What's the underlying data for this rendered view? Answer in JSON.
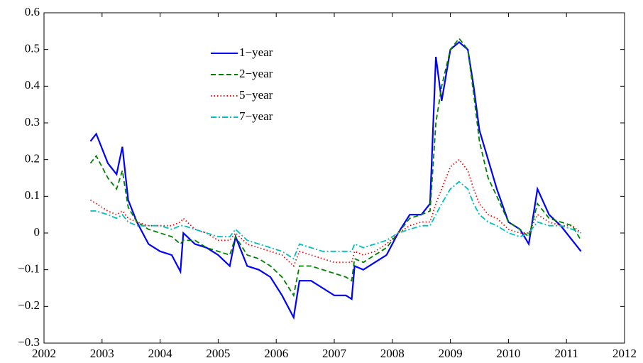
{
  "chart_data": {
    "type": "line",
    "x": [
      2002.8,
      2002.9,
      2003.1,
      2003.25,
      2003.35,
      2003.45,
      2003.6,
      2003.8,
      2004.0,
      2004.2,
      2004.35,
      2004.4,
      2004.6,
      2004.8,
      2005.0,
      2005.2,
      2005.3,
      2005.5,
      2005.7,
      2005.9,
      2006.1,
      2006.3,
      2006.4,
      2006.6,
      2006.8,
      2007.0,
      2007.2,
      2007.3,
      2007.35,
      2007.5,
      2007.7,
      2007.9,
      2008.1,
      2008.3,
      2008.5,
      2008.65,
      2008.75,
      2008.85,
      2009.0,
      2009.15,
      2009.3,
      2009.4,
      2009.5,
      2009.65,
      2009.8,
      2010.0,
      2010.2,
      2010.35,
      2010.5,
      2010.7,
      2010.9,
      2011.1,
      2011.25
    ],
    "series": [
      {
        "name": "1−year",
        "color": "#0000ff",
        "dash": "solid",
        "values": [
          0.25,
          0.27,
          0.19,
          0.16,
          0.235,
          0.09,
          0.03,
          -0.03,
          -0.05,
          -0.06,
          -0.105,
          0.0,
          -0.03,
          -0.04,
          -0.06,
          -0.09,
          -0.01,
          -0.09,
          -0.1,
          -0.12,
          -0.17,
          -0.23,
          -0.13,
          -0.13,
          -0.15,
          -0.17,
          -0.17,
          -0.18,
          -0.09,
          -0.1,
          -0.08,
          -0.06,
          0.0,
          0.05,
          0.05,
          0.08,
          0.48,
          0.36,
          0.5,
          0.52,
          0.5,
          0.4,
          0.28,
          0.2,
          0.12,
          0.03,
          0.01,
          -0.03,
          0.12,
          0.05,
          0.02,
          -0.02,
          -0.05
        ]
      },
      {
        "name": "2−year",
        "color": "#008000",
        "dash": "dashed",
        "values": [
          0.19,
          0.21,
          0.15,
          0.12,
          0.17,
          0.07,
          0.03,
          0.01,
          0.0,
          -0.01,
          -0.03,
          -0.02,
          -0.02,
          -0.04,
          -0.05,
          -0.06,
          -0.01,
          -0.06,
          -0.07,
          -0.09,
          -0.12,
          -0.17,
          -0.09,
          -0.09,
          -0.1,
          -0.11,
          -0.12,
          -0.13,
          -0.07,
          -0.08,
          -0.06,
          -0.04,
          0.0,
          0.04,
          0.05,
          0.06,
          0.3,
          0.4,
          0.5,
          0.53,
          0.5,
          0.38,
          0.25,
          0.15,
          0.1,
          0.03,
          0.01,
          -0.01,
          0.08,
          0.04,
          0.03,
          0.02,
          -0.02
        ]
      },
      {
        "name": "5−year",
        "color": "#ff0000",
        "dash": "dotted",
        "values": [
          0.09,
          0.08,
          0.06,
          0.05,
          0.06,
          0.04,
          0.03,
          0.02,
          0.02,
          0.02,
          0.03,
          0.04,
          0.01,
          0.0,
          -0.02,
          -0.02,
          0.0,
          -0.03,
          -0.04,
          -0.05,
          -0.06,
          -0.09,
          -0.05,
          -0.06,
          -0.07,
          -0.08,
          -0.08,
          -0.08,
          -0.05,
          -0.06,
          -0.05,
          -0.03,
          0.0,
          0.02,
          0.03,
          0.03,
          0.08,
          0.12,
          0.18,
          0.2,
          0.17,
          0.12,
          0.08,
          0.05,
          0.04,
          0.01,
          0.0,
          0.0,
          0.05,
          0.03,
          0.02,
          0.02,
          0.0
        ]
      },
      {
        "name": "7−year",
        "color": "#00bfbf",
        "dash": "dashdot",
        "values": [
          0.06,
          0.06,
          0.05,
          0.04,
          0.05,
          0.03,
          0.02,
          0.02,
          0.02,
          0.01,
          0.02,
          0.02,
          0.01,
          0.0,
          -0.01,
          -0.01,
          0.01,
          -0.02,
          -0.03,
          -0.04,
          -0.05,
          -0.07,
          -0.03,
          -0.04,
          -0.05,
          -0.05,
          -0.05,
          -0.05,
          -0.03,
          -0.04,
          -0.03,
          -0.02,
          0.0,
          0.01,
          0.02,
          0.02,
          0.05,
          0.08,
          0.12,
          0.14,
          0.12,
          0.08,
          0.05,
          0.03,
          0.02,
          0.0,
          -0.01,
          0.0,
          0.03,
          0.02,
          0.02,
          0.01,
          0.0
        ]
      }
    ],
    "xlim": [
      2002,
      2012
    ],
    "xticks": [
      2002,
      2003,
      2004,
      2005,
      2006,
      2007,
      2008,
      2009,
      2010,
      2011,
      2012
    ],
    "ylim": [
      -0.3,
      0.6
    ],
    "yticks": [
      {
        "value": -0.3,
        "label": "−0.3"
      },
      {
        "value": -0.2,
        "label": "−0.2"
      },
      {
        "value": -0.1,
        "label": "−0.1"
      },
      0,
      0.1,
      0.2,
      0.3,
      0.4,
      0.5,
      0.6
    ],
    "grid": false,
    "legend": "top-left"
  }
}
